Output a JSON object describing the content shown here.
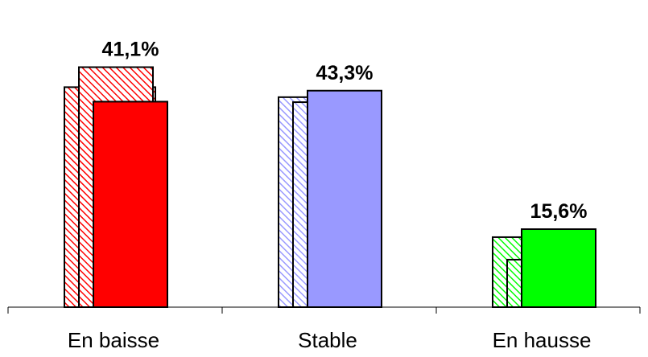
{
  "chart_data": {
    "type": "bar",
    "categories": [
      "En baisse",
      "Stable",
      "En hausse"
    ],
    "series": [
      {
        "values": [
          44.0,
          42.0,
          14.0
        ]
      },
      {
        "values": [
          48.0,
          41.0,
          9.5
        ]
      },
      {
        "values": [
          41.1,
          43.3,
          15.6
        ]
      }
    ],
    "data_labels": [
      "41,1%",
      "43,3%",
      "15,6%"
    ],
    "colors": [
      "#ff0000",
      "#9999ff",
      "#00ff00"
    ],
    "ylim": [
      0,
      55
    ],
    "grid": false,
    "legend": "none"
  }
}
